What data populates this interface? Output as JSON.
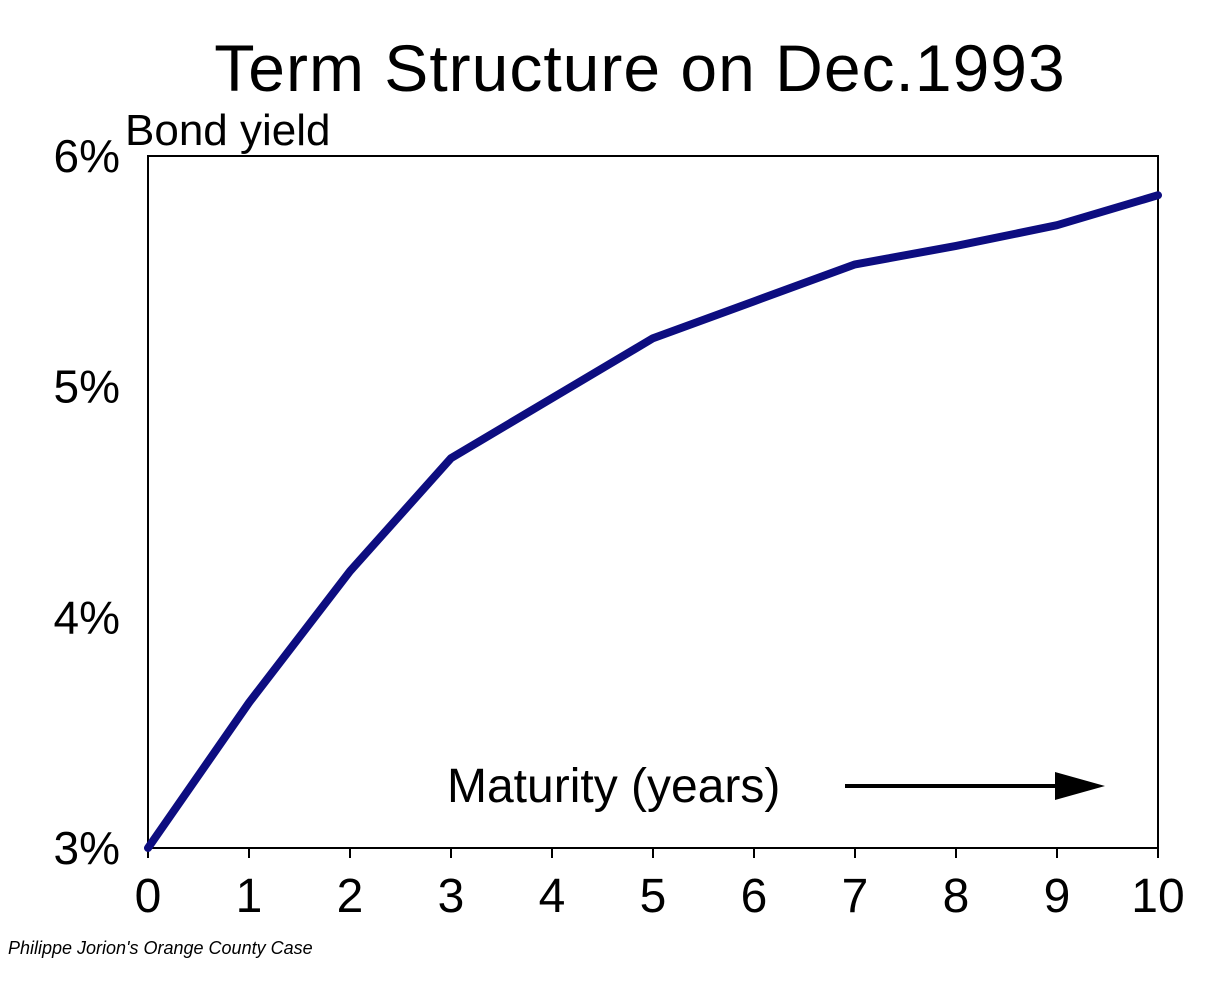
{
  "chart_data": {
    "type": "line",
    "title": "Term Structure on Dec.1993",
    "ylabel": "Bond yield",
    "xlabel": "Maturity (years)",
    "xlim": [
      0,
      10
    ],
    "ylim": [
      3,
      6
    ],
    "x_ticks": [
      "0",
      "1",
      "2",
      "3",
      "4",
      "5",
      "6",
      "7",
      "8",
      "9",
      "10"
    ],
    "y_ticks": [
      "3%",
      "4%",
      "5%",
      "6%"
    ],
    "series": [
      {
        "x": [
          0,
          1,
          2,
          3,
          4,
          5,
          6,
          7,
          8,
          9,
          10
        ],
        "values": [
          3.0,
          3.63,
          4.2,
          4.69,
          4.95,
          5.21,
          5.37,
          5.53,
          5.61,
          5.7,
          5.83
        ]
      }
    ],
    "line_color": "#0d0d80",
    "grid": false
  },
  "footer": {
    "credit": "Philippe Jorion's Orange County Case"
  }
}
